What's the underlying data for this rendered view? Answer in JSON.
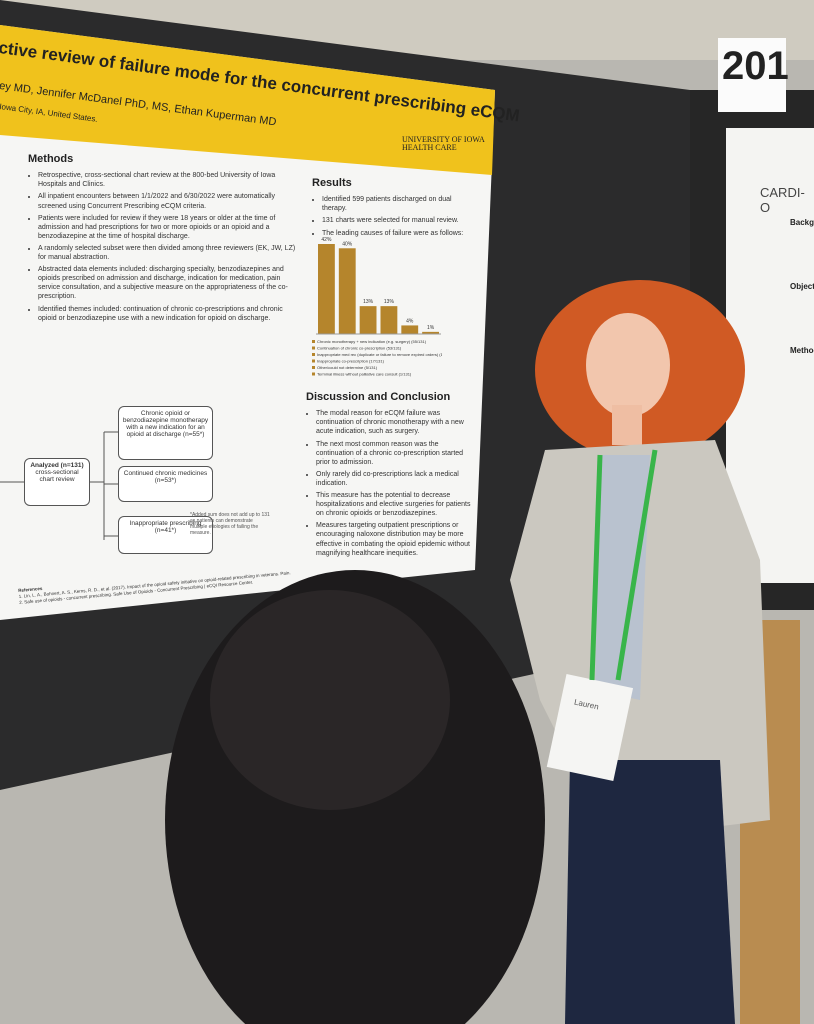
{
  "booth_number": "201",
  "poster": {
    "title": "ctive review of failure mode for the concurrent prescribing eCQM",
    "authors": "ey MD, Jennifer McDanel PhD, MS, Ethan Kuperman MD",
    "affiliation": "Iowa City, IA, United States.",
    "logo": [
      "UNIVERSITY OF IOWA",
      "HEALTH CARE"
    ],
    "methods": {
      "heading": "Methods",
      "bullets": [
        "Retrospective, cross-sectional chart review at the 800-bed University of Iowa Hospitals and Clinics.",
        "All inpatient encounters between 1/1/2022 and 6/30/2022 were automatically screened using Concurrent Prescribing eCQM criteria.",
        "Patients were included for review if they were 18 years or older at the time of admission and had prescriptions for two or more opioids or an opioid and a benzodiazepine at the time of hospital discharge.",
        "A randomly selected subset were then divided among three reviewers (EK, JW, LZ) for manual abstraction.",
        "Abstracted data elements included: discharging specialty, benzodiazepines and opioids prescribed on admission and discharge, indication for medication, pain service consultation, and a subjective measure on the appropriateness of the co-prescription.",
        "Identified themes included: continuation of chronic co-prescriptions and chronic opioid or benzodiazepine use with a new indication for opioid on discharge."
      ]
    },
    "flowchart": {
      "analyzed": "Analyzed (n=131)",
      "analyzed_sub": "cross-sectional chart review",
      "boxes": [
        "Chronic opioid or benzodiazepine monotherapy with a new indication for an opioid at discharge (n=55*)",
        "Continued chronic medicines (n=53*)",
        "Inappropriate prescribing (n=41*)"
      ],
      "footnote": "*Added sum does not add up to 131 as patients can demonstrate multiple etiologies of failing the measure."
    },
    "results": {
      "heading": "Results",
      "bullets": [
        "Identified 599 patients discharged on dual therapy.",
        "131 charts were selected for manual review.",
        "The leading causes of failure were as follows:"
      ]
    },
    "discussion": {
      "heading": "Discussion and Conclusion",
      "bullets": [
        "The modal reason for eCQM failure was continuation of chronic monotherapy with a new acute indication, such as surgery.",
        "The next most common reason was the continuation of a chronic co-prescription started prior to admission.",
        "Only rarely did co-prescriptions lack a medical indication.",
        "This measure has the potential to decrease hospitalizations and elective surgeries for patients on chronic opioids or benzodiazepines.",
        "Measures targeting outpatient prescriptions or encouraging naloxone distribution may be more effective in combating the opioid epidemic without magnifying healthcare inequities."
      ]
    },
    "references": {
      "heading": "References",
      "items": [
        "1. Lin, L. A., Bohnert, A. S., Kerns, R. D., et al. (2017). Impact of the opioid safety initiative on opioid-related prescribing in veterans. Pain.",
        "2. Safe use of opioids - concurrent prescribing. Safe Use of Opioids - Concurrent Prescribing | eCQI Resource Center."
      ]
    }
  },
  "chart_data": {
    "type": "bar",
    "color": "#b5852c",
    "categories": [
      "Chronic monotherapy + new indication (e.g. surgery) (55/131)",
      "Continuation of chronic co-prescription (53/131)",
      "Inappropriate med rec (duplicate or failure to remove expired orders) (17/131)",
      "Inappropriate co-prescription (17/131)",
      "Other/could not determine (5/131)",
      "Terminal illness without palliative care consult (1/131)"
    ],
    "values": [
      42,
      40,
      13,
      13,
      4,
      1
    ],
    "value_labels": [
      "42%",
      "40%",
      "13%",
      "13%",
      "4%",
      "1%"
    ]
  },
  "side_poster": {
    "logo": "CARDI-O",
    "headings": [
      "Backg",
      "Objecti",
      "Methods"
    ]
  },
  "badge": {
    "name": "Lauren"
  }
}
